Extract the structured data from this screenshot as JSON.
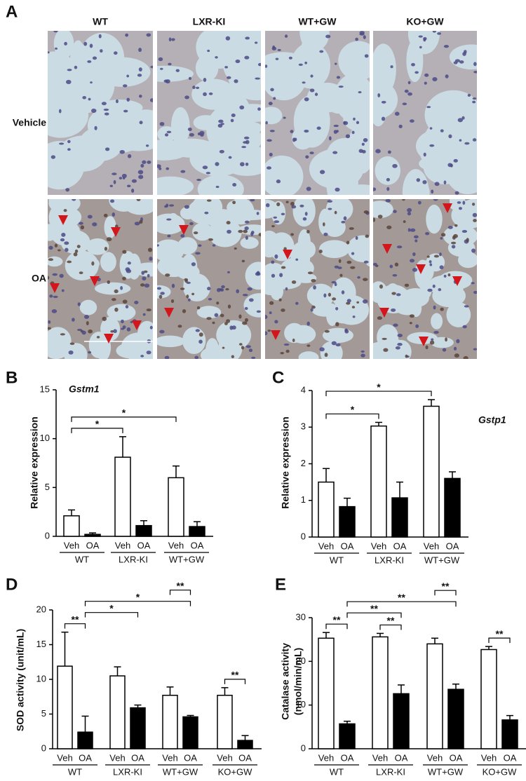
{
  "figure": {
    "panel_a": {
      "panel_label": "A",
      "columns": [
        "WT",
        "LXR-KI",
        "WT+GW",
        "KO+GW"
      ],
      "rows": [
        "Vehicle",
        "OA"
      ]
    }
  },
  "chart_data": [
    {
      "type": "bar",
      "panel_label": "B",
      "title": "Gstm1",
      "y_label": [
        "Relative expression"
      ],
      "groups": [
        "WT",
        "LXR-KI",
        "WT+GW"
      ],
      "series": [
        {
          "name": "Veh",
          "color": "#ffffff",
          "values": [
            2.1,
            8.1,
            6.0
          ],
          "errors": [
            0.6,
            2.1,
            1.2
          ]
        },
        {
          "name": "OA",
          "color": "#000000",
          "values": [
            0.2,
            1.1,
            1.0
          ],
          "errors": [
            0.15,
            0.5,
            0.5
          ]
        }
      ],
      "ylim": [
        0,
        15
      ],
      "yticks": [
        0,
        5,
        10,
        15
      ],
      "significance": [
        {
          "label": "*",
          "from": [
            0,
            0
          ],
          "to": [
            1,
            0
          ]
        },
        {
          "label": "*",
          "from": [
            0,
            0
          ],
          "to": [
            2,
            0
          ]
        }
      ]
    },
    {
      "type": "bar",
      "panel_label": "C",
      "title": "Gstp1",
      "y_label": [
        "Relative expression"
      ],
      "groups": [
        "WT",
        "LXR-KI",
        "WT+GW"
      ],
      "series": [
        {
          "name": "Veh",
          "color": "#ffffff",
          "values": [
            1.5,
            3.03,
            3.57
          ],
          "errors": [
            0.37,
            0.1,
            0.18
          ]
        },
        {
          "name": "OA",
          "color": "#000000",
          "values": [
            0.83,
            1.07,
            1.6
          ],
          "errors": [
            0.23,
            0.43,
            0.18
          ]
        }
      ],
      "ylim": [
        0,
        4
      ],
      "yticks": [
        0,
        1,
        2,
        3,
        4
      ],
      "significance": [
        {
          "label": "*",
          "from": [
            0,
            0
          ],
          "to": [
            1,
            0
          ]
        },
        {
          "label": "*",
          "from": [
            0,
            0
          ],
          "to": [
            2,
            0
          ]
        }
      ]
    },
    {
      "type": "bar",
      "panel_label": "D",
      "y_label": [
        "SOD activity (unit/mL)"
      ],
      "groups": [
        "WT",
        "LXR-KI",
        "WT+GW",
        "KO+GW"
      ],
      "series": [
        {
          "name": "Veh",
          "color": "#ffffff",
          "values": [
            11.9,
            10.5,
            7.7,
            7.7
          ],
          "errors": [
            4.9,
            1.3,
            1.2,
            1.1
          ]
        },
        {
          "name": "OA",
          "color": "#000000",
          "values": [
            2.4,
            5.9,
            4.6,
            1.2
          ],
          "errors": [
            2.3,
            0.4,
            0.2,
            0.7
          ]
        }
      ],
      "ylim": [
        0,
        20
      ],
      "yticks": [
        0,
        5,
        10,
        15,
        20
      ],
      "significance": [
        {
          "label": "**",
          "from": [
            0,
            0
          ],
          "to": [
            0,
            1
          ]
        },
        {
          "label": "*",
          "from": [
            0,
            1
          ],
          "to": [
            1,
            1
          ]
        },
        {
          "label": "*",
          "from": [
            0,
            1
          ],
          "to": [
            2,
            1
          ]
        },
        {
          "label": "**",
          "from": [
            2,
            0
          ],
          "to": [
            2,
            1
          ]
        },
        {
          "label": "**",
          "from": [
            3,
            0
          ],
          "to": [
            3,
            1
          ]
        }
      ]
    },
    {
      "type": "bar",
      "panel_label": "E",
      "y_label": [
        "Catalase activity",
        "(nmol/min/mL)"
      ],
      "groups": [
        "WT",
        "LXR-KI",
        "WT+GW",
        "KO+GW"
      ],
      "series": [
        {
          "name": "Veh",
          "color": "#ffffff",
          "values": [
            25.3,
            25.6,
            24.0,
            22.7
          ],
          "errors": [
            1.3,
            0.8,
            1.3,
            0.7
          ]
        },
        {
          "name": "OA",
          "color": "#000000",
          "values": [
            5.7,
            12.6,
            13.6,
            6.6
          ],
          "errors": [
            0.6,
            2.0,
            1.2,
            1.0
          ]
        }
      ],
      "ylim": [
        0,
        30
      ],
      "yticks": [
        0,
        10,
        20,
        30
      ],
      "significance": [
        {
          "label": "**",
          "from": [
            0,
            0
          ],
          "to": [
            0,
            1
          ]
        },
        {
          "label": "**",
          "from": [
            1,
            0
          ],
          "to": [
            1,
            1
          ]
        },
        {
          "label": "**",
          "from": [
            0,
            1
          ],
          "to": [
            1,
            1
          ]
        },
        {
          "label": "**",
          "from": [
            0,
            1
          ],
          "to": [
            2,
            1
          ]
        },
        {
          "label": "**",
          "from": [
            2,
            0
          ],
          "to": [
            2,
            1
          ]
        },
        {
          "label": "**",
          "from": [
            3,
            0
          ],
          "to": [
            3,
            1
          ]
        }
      ]
    }
  ]
}
